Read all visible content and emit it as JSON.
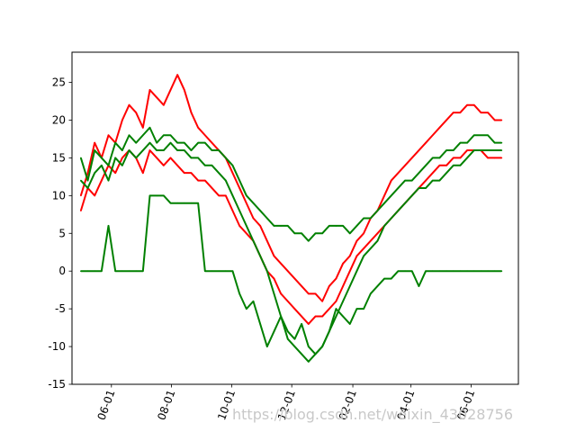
{
  "chart_data": {
    "type": "line",
    "title": "",
    "xlabel": "",
    "ylabel": "",
    "ylim": [
      -15,
      29
    ],
    "xlim": [
      "2017-04-22",
      "2018-07-19"
    ],
    "grid": false,
    "y_ticks": [
      -15,
      -10,
      -5,
      0,
      5,
      10,
      15,
      20,
      25
    ],
    "x_ticks": [
      {
        "date": "2017-06-01",
        "label": "06-01"
      },
      {
        "date": "2017-08-01",
        "label": "08-01"
      },
      {
        "date": "2017-10-01",
        "label": "10-01"
      },
      {
        "date": "2017-12-01",
        "label": "12-01"
      },
      {
        "date": "2018-02-01",
        "label": "02-01"
      },
      {
        "date": "2018-04-01",
        "label": "04-01"
      },
      {
        "date": "2018-06-01",
        "label": "06-01"
      }
    ],
    "colors": {
      "red": "#ff0000",
      "green": "#008000"
    },
    "series": [
      {
        "color": "#ff0000",
        "x": [
          "2017-05-01",
          "2017-05-08",
          "2017-05-15",
          "2017-05-22",
          "2017-05-29",
          "2017-06-05",
          "2017-06-12",
          "2017-06-19",
          "2017-06-26",
          "2017-07-03",
          "2017-07-10",
          "2017-07-17",
          "2017-07-24",
          "2017-07-31",
          "2017-08-07",
          "2017-08-14",
          "2017-08-21",
          "2017-08-28",
          "2017-09-04",
          "2017-09-11",
          "2017-09-18",
          "2017-09-25",
          "2017-10-02",
          "2017-10-09",
          "2017-10-16",
          "2017-10-23",
          "2017-10-30",
          "2017-11-06",
          "2017-11-13",
          "2017-11-20",
          "2017-11-27",
          "2017-12-04",
          "2017-12-11",
          "2017-12-18",
          "2017-12-25",
          "2018-01-01",
          "2018-01-08",
          "2018-01-15",
          "2018-01-22",
          "2018-01-29",
          "2018-02-05",
          "2018-02-12",
          "2018-02-19",
          "2018-02-26",
          "2018-03-05",
          "2018-03-12",
          "2018-03-19",
          "2018-03-26",
          "2018-04-02",
          "2018-04-09",
          "2018-04-16",
          "2018-04-23",
          "2018-04-30",
          "2018-05-07",
          "2018-05-14",
          "2018-05-21",
          "2018-05-28",
          "2018-06-04",
          "2018-06-11",
          "2018-06-18",
          "2018-06-25",
          "2018-07-02"
        ],
        "y": [
          10,
          13,
          17,
          15,
          18,
          17,
          20,
          22,
          21,
          19,
          24,
          23,
          22,
          24,
          26,
          24,
          21,
          19,
          18,
          17,
          16,
          15,
          13,
          11,
          9,
          7,
          6,
          4,
          2,
          1,
          0,
          -1,
          -2,
          -3,
          -3,
          -4,
          -2,
          -1,
          1,
          2,
          4,
          5,
          7,
          8,
          10,
          12,
          13,
          14,
          15,
          16,
          17,
          18,
          19,
          20,
          21,
          21,
          22,
          22,
          21,
          21,
          20,
          20
        ]
      },
      {
        "color": "#ff0000",
        "x": [
          "2017-05-01",
          "2017-05-08",
          "2017-05-15",
          "2017-05-22",
          "2017-05-29",
          "2017-06-05",
          "2017-06-12",
          "2017-06-19",
          "2017-06-26",
          "2017-07-03",
          "2017-07-10",
          "2017-07-17",
          "2017-07-24",
          "2017-07-31",
          "2017-08-07",
          "2017-08-14",
          "2017-08-21",
          "2017-08-28",
          "2017-09-04",
          "2017-09-11",
          "2017-09-18",
          "2017-09-25",
          "2017-10-02",
          "2017-10-09",
          "2017-10-16",
          "2017-10-23",
          "2017-10-30",
          "2017-11-06",
          "2017-11-13",
          "2017-11-20",
          "2017-11-27",
          "2017-12-04",
          "2017-12-11",
          "2017-12-18",
          "2017-12-25",
          "2018-01-01",
          "2018-01-08",
          "2018-01-15",
          "2018-01-22",
          "2018-01-29",
          "2018-02-05",
          "2018-02-12",
          "2018-02-19",
          "2018-02-26",
          "2018-03-05",
          "2018-03-12",
          "2018-03-19",
          "2018-03-26",
          "2018-04-02",
          "2018-04-09",
          "2018-04-16",
          "2018-04-23",
          "2018-04-30",
          "2018-05-07",
          "2018-05-14",
          "2018-05-21",
          "2018-05-28",
          "2018-06-04",
          "2018-06-11",
          "2018-06-18",
          "2018-06-25",
          "2018-07-02"
        ],
        "y": [
          8,
          11,
          10,
          12,
          14,
          13,
          15,
          16,
          15,
          13,
          16,
          15,
          14,
          15,
          14,
          13,
          13,
          12,
          12,
          11,
          10,
          10,
          8,
          6,
          5,
          4,
          2,
          0,
          -1,
          -3,
          -4,
          -5,
          -6,
          -7,
          -6,
          -6,
          -5,
          -4,
          -2,
          0,
          2,
          3,
          4,
          5,
          6,
          7,
          8,
          9,
          10,
          11,
          12,
          13,
          14,
          14,
          15,
          15,
          16,
          16,
          16,
          15,
          15,
          15
        ]
      },
      {
        "color": "#008000",
        "x": [
          "2017-05-01",
          "2017-05-08",
          "2017-05-15",
          "2017-05-22",
          "2017-05-29",
          "2017-06-05",
          "2017-06-12",
          "2017-06-19",
          "2017-06-26",
          "2017-07-03",
          "2017-07-10",
          "2017-07-17",
          "2017-07-24",
          "2017-07-31",
          "2017-08-07",
          "2017-08-14",
          "2017-08-21",
          "2017-08-28",
          "2017-09-04",
          "2017-09-11",
          "2017-09-18",
          "2017-09-25",
          "2017-10-02",
          "2017-10-09",
          "2017-10-16",
          "2017-10-23",
          "2017-10-30",
          "2017-11-06",
          "2017-11-13",
          "2017-11-20",
          "2017-11-27",
          "2017-12-04",
          "2017-12-11",
          "2017-12-18",
          "2017-12-25",
          "2018-01-01",
          "2018-01-08",
          "2018-01-15",
          "2018-01-22",
          "2018-01-29",
          "2018-02-05",
          "2018-02-12",
          "2018-02-19",
          "2018-02-26",
          "2018-03-05",
          "2018-03-12",
          "2018-03-19",
          "2018-03-26",
          "2018-04-02",
          "2018-04-09",
          "2018-04-16",
          "2018-04-23",
          "2018-04-30",
          "2018-05-07",
          "2018-05-14",
          "2018-05-21",
          "2018-05-28",
          "2018-06-04",
          "2018-06-11",
          "2018-06-18",
          "2018-06-25",
          "2018-07-02"
        ],
        "y": [
          15,
          12,
          16,
          15,
          14,
          17,
          16,
          18,
          17,
          18,
          19,
          17,
          18,
          18,
          17,
          17,
          16,
          17,
          17,
          16,
          16,
          15,
          14,
          12,
          10,
          9,
          8,
          7,
          6,
          6,
          6,
          5,
          5,
          4,
          5,
          5,
          6,
          6,
          6,
          5,
          6,
          7,
          7,
          8,
          9,
          10,
          11,
          12,
          12,
          13,
          14,
          15,
          15,
          16,
          16,
          17,
          17,
          18,
          18,
          18,
          17,
          17
        ]
      },
      {
        "color": "#008000",
        "x": [
          "2017-05-01",
          "2017-05-08",
          "2017-05-15",
          "2017-05-22",
          "2017-05-29",
          "2017-06-05",
          "2017-06-12",
          "2017-06-19",
          "2017-06-26",
          "2017-07-03",
          "2017-07-10",
          "2017-07-17",
          "2017-07-24",
          "2017-07-31",
          "2017-08-07",
          "2017-08-14",
          "2017-08-21",
          "2017-08-28",
          "2017-09-04",
          "2017-09-11",
          "2017-09-18",
          "2017-09-25",
          "2017-10-02",
          "2017-10-09",
          "2017-10-16",
          "2017-10-23",
          "2017-10-30",
          "2017-11-06",
          "2017-11-13",
          "2017-11-20",
          "2017-11-27",
          "2017-12-04",
          "2017-12-11",
          "2017-12-18",
          "2017-12-25",
          "2018-01-01",
          "2018-01-08",
          "2018-01-15",
          "2018-01-22",
          "2018-01-29",
          "2018-02-05",
          "2018-02-12",
          "2018-02-19",
          "2018-02-26",
          "2018-03-05",
          "2018-03-12",
          "2018-03-19",
          "2018-03-26",
          "2018-04-02",
          "2018-04-09",
          "2018-04-16",
          "2018-04-23",
          "2018-04-30",
          "2018-05-07",
          "2018-05-14",
          "2018-05-21",
          "2018-05-28",
          "2018-06-04",
          "2018-06-11",
          "2018-06-18",
          "2018-06-25",
          "2018-07-02"
        ],
        "y": [
          12,
          11,
          13,
          14,
          12,
          15,
          14,
          16,
          15,
          16,
          17,
          16,
          16,
          17,
          16,
          16,
          15,
          15,
          14,
          14,
          13,
          12,
          10,
          8,
          6,
          4,
          2,
          0,
          -3,
          -6,
          -9,
          -10,
          -11,
          -12,
          -11,
          -10,
          -8,
          -6,
          -4,
          -2,
          0,
          2,
          3,
          4,
          6,
          7,
          8,
          9,
          10,
          11,
          11,
          12,
          12,
          13,
          14,
          14,
          15,
          16,
          16,
          16,
          16,
          16
        ]
      },
      {
        "color": "#008000",
        "x": [
          "2017-05-01",
          "2017-05-08",
          "2017-05-15",
          "2017-05-22",
          "2017-05-29",
          "2017-06-05",
          "2017-06-12",
          "2017-06-19",
          "2017-06-26",
          "2017-07-03",
          "2017-07-10",
          "2017-07-17",
          "2017-07-24",
          "2017-07-31",
          "2017-08-07",
          "2017-08-14",
          "2017-08-21",
          "2017-08-28",
          "2017-09-04",
          "2017-09-11",
          "2017-09-18",
          "2017-09-25",
          "2017-10-02",
          "2017-10-09",
          "2017-10-16",
          "2017-10-23",
          "2017-10-30",
          "2017-11-06",
          "2017-11-13",
          "2017-11-20",
          "2017-11-27",
          "2017-12-04",
          "2017-12-11",
          "2017-12-18",
          "2017-12-25",
          "2018-01-01",
          "2018-01-08",
          "2018-01-15",
          "2018-01-22",
          "2018-01-29",
          "2018-02-05",
          "2018-02-12",
          "2018-02-19",
          "2018-02-26",
          "2018-03-05",
          "2018-03-12",
          "2018-03-19",
          "2018-03-26",
          "2018-04-02",
          "2018-04-09",
          "2018-04-16",
          "2018-04-23",
          "2018-04-30",
          "2018-05-07",
          "2018-05-14",
          "2018-05-21",
          "2018-05-28",
          "2018-06-04",
          "2018-06-11",
          "2018-06-18",
          "2018-06-25",
          "2018-07-02"
        ],
        "y": [
          0,
          0,
          0,
          0,
          6,
          0,
          0,
          0,
          0,
          0,
          10,
          10,
          10,
          9,
          9,
          9,
          9,
          9,
          0,
          0,
          0,
          0,
          0,
          -3,
          -5,
          -4,
          -7,
          -10,
          -8,
          -6,
          -8,
          -9,
          -7,
          -10,
          -11,
          -10,
          -8,
          -5,
          -6,
          -7,
          -5,
          -5,
          -3,
          -2,
          -1,
          -1,
          0,
          0,
          0,
          -2,
          0,
          0,
          0,
          0,
          0,
          0,
          0,
          0,
          0,
          0,
          0,
          0
        ]
      }
    ]
  },
  "watermark": "https://blog.csdn.net/weixin_43028756"
}
